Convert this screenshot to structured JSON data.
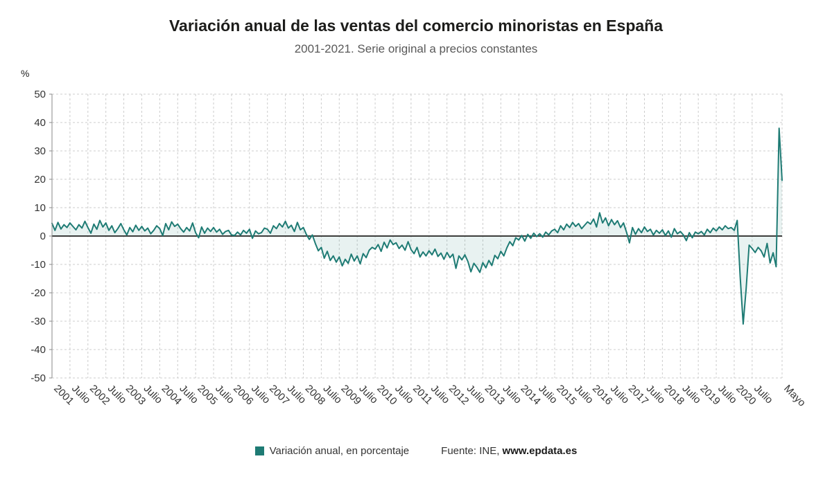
{
  "header": {
    "title": "Variación anual de las ventas del comercio minoristas en España",
    "subtitle": "2001-2021. Serie original a precios constantes"
  },
  "y_axis": {
    "unit_label": "%",
    "ticks": [
      "50",
      "40",
      "30",
      "20",
      "10",
      "0",
      "-10",
      "-20",
      "-30",
      "-40",
      "-50"
    ]
  },
  "legend": {
    "series_label": "Variación anual, en porcentaje",
    "source_prefix": "Fuente: INE,",
    "source_link": "www.epdata.es"
  },
  "chart_data": {
    "type": "line",
    "title": "Variación anual de las ventas del comercio minoristas en España",
    "subtitle": "2001-2021. Serie original a precios constantes",
    "series_name": "Variación anual, en porcentaje",
    "x_start": "2001-01",
    "x_end": "2021-05",
    "frequency": "monthly",
    "ylim": [
      -50,
      50
    ],
    "y_tick_step": 10,
    "grid": "dashed",
    "legend_position": "bottom",
    "line_color": "#1e7b74",
    "fill_color": "rgba(30,123,116,0.10)",
    "x_tick_labels": [
      "2001",
      "Julio",
      "2002",
      "Julio",
      "2003",
      "Julio",
      "2004",
      "Julio",
      "2005",
      "Julio",
      "2006",
      "Julio",
      "2007",
      "Julio",
      "2008",
      "Julio",
      "2009",
      "Julio",
      "2010",
      "Julio",
      "2011",
      "Julio",
      "2012",
      "Julio",
      "2013",
      "Julio",
      "2014",
      "Julio",
      "2015",
      "Julio",
      "2016",
      "Julio",
      "2017",
      "Julio",
      "2018",
      "Julio",
      "2019",
      "Julio",
      "2020",
      "Julio",
      "Mayo"
    ],
    "x_tick_month_indices": [
      0,
      6,
      12,
      18,
      24,
      30,
      36,
      42,
      48,
      54,
      60,
      66,
      72,
      78,
      84,
      90,
      96,
      102,
      108,
      114,
      120,
      126,
      132,
      138,
      144,
      150,
      156,
      162,
      168,
      174,
      180,
      186,
      192,
      198,
      204,
      210,
      216,
      222,
      228,
      234,
      244
    ],
    "values": [
      4.5,
      2.0,
      4.8,
      2.5,
      4.0,
      3.0,
      4.6,
      3.4,
      2.2,
      4.0,
      2.8,
      5.2,
      3.0,
      1.0,
      4.2,
      2.4,
      5.5,
      3.2,
      4.6,
      2.0,
      3.6,
      1.2,
      2.6,
      4.4,
      2.2,
      0.4,
      3.0,
      1.5,
      3.8,
      2.0,
      3.4,
      1.8,
      2.8,
      0.8,
      2.0,
      3.6,
      2.6,
      0.2,
      4.4,
      2.2,
      5.0,
      3.4,
      4.2,
      2.6,
      1.4,
      3.0,
      1.8,
      4.6,
      1.2,
      -0.6,
      3.2,
      1.0,
      2.8,
      1.6,
      3.0,
      1.4,
      2.4,
      0.6,
      1.6,
      2.0,
      0.4,
      0.2,
      1.4,
      0.4,
      2.0,
      1.0,
      2.4,
      -0.8,
      1.8,
      0.8,
      1.2,
      2.8,
      2.4,
      1.0,
      3.6,
      2.6,
      4.4,
      3.2,
      5.2,
      2.8,
      3.8,
      1.6,
      4.8,
      2.2,
      3.0,
      0.6,
      -1.2,
      0.4,
      -2.6,
      -5.2,
      -4.0,
      -7.8,
      -5.4,
      -8.6,
      -7.0,
      -9.2,
      -7.4,
      -10.5,
      -8.2,
      -9.6,
      -6.4,
      -8.8,
      -7.0,
      -9.8,
      -6.2,
      -7.6,
      -5.0,
      -4.0,
      -4.6,
      -3.0,
      -5.4,
      -2.2,
      -4.2,
      -1.4,
      -3.0,
      -2.4,
      -4.4,
      -3.2,
      -5.0,
      -2.0,
      -4.8,
      -6.2,
      -4.0,
      -7.4,
      -5.6,
      -7.0,
      -5.2,
      -6.6,
      -4.6,
      -7.2,
      -6.0,
      -8.2,
      -5.8,
      -7.6,
      -6.4,
      -11.4,
      -7.0,
      -8.4,
      -6.6,
      -9.0,
      -12.6,
      -9.6,
      -11.0,
      -12.8,
      -9.4,
      -11.2,
      -8.6,
      -10.4,
      -6.8,
      -8.0,
      -5.4,
      -7.0,
      -4.2,
      -2.0,
      -3.4,
      -0.6,
      -1.4,
      0.2,
      -1.8,
      0.6,
      -0.8,
      1.0,
      -0.2,
      0.8,
      -0.4,
      1.4,
      0.4,
      1.8,
      2.4,
      1.2,
      3.6,
      2.2,
      4.2,
      3.0,
      4.8,
      3.4,
      4.4,
      2.6,
      3.8,
      5.0,
      4.2,
      6.0,
      3.2,
      8.2,
      4.6,
      6.4,
      3.6,
      5.8,
      4.0,
      5.4,
      3.0,
      4.6,
      1.4,
      -2.4,
      3.0,
      0.6,
      2.6,
      1.2,
      3.2,
      1.6,
      2.4,
      0.4,
      2.0,
      1.0,
      2.2,
      0.2,
      1.8,
      -0.4,
      2.6,
      0.8,
      1.6,
      0.4,
      -1.6,
      1.2,
      -0.6,
      1.4,
      0.8,
      1.6,
      0.4,
      2.4,
      1.2,
      2.8,
      1.8,
      3.2,
      2.2,
      3.6,
      2.6,
      3.0,
      2.0,
      5.5,
      -14.5,
      -31.0,
      -18.5,
      -3.2,
      -4.4,
      -5.8,
      -4.0,
      -5.2,
      -7.4,
      -2.6,
      -9.5,
      -5.9,
      -10.8,
      38.0,
      19.6
    ]
  }
}
